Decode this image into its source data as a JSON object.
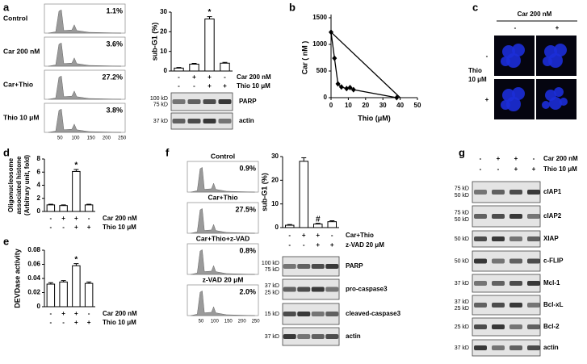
{
  "chart_data": [
    {
      "type": "bar",
      "ylabel": "sub-G1 (%)",
      "values": [
        1.5,
        3.5,
        26.5,
        4
      ],
      "errors": [
        0.3,
        0.4,
        1.2,
        0.4
      ],
      "markers": [
        null,
        null,
        "*",
        null
      ],
      "color": "#ffffff",
      "ylim": [
        0,
        30
      ],
      "yticks": [
        0,
        10,
        20,
        30
      ]
    },
    {
      "type": "line",
      "xlabel": "Thio (μM)",
      "ylabel": "Car ( nM )",
      "xlim": [
        0,
        50
      ],
      "xticks": [
        0,
        10,
        20,
        30,
        40,
        50
      ],
      "ylim": [
        0,
        1500
      ],
      "yticks": [
        0,
        500,
        1000,
        1500
      ],
      "series": [
        {
          "color": "#000000",
          "marker": "diamond",
          "x": [
            0,
            2,
            4,
            6,
            9,
            11,
            13,
            38
          ],
          "values": [
            1230,
            740,
            260,
            200,
            170,
            190,
            150,
            0
          ]
        },
        {
          "color": "#000000",
          "x": [
            0,
            40
          ],
          "values": [
            1230,
            0
          ]
        }
      ]
    },
    {
      "type": "bar",
      "ylabel": [
        "Oligonucleosome",
        "associated histone",
        "(Arbitrary unit, fold)"
      ],
      "values": [
        1,
        0.9,
        6.1,
        1
      ],
      "errors": [
        0.1,
        0.1,
        0.3,
        0.1
      ],
      "markers": [
        null,
        null,
        "*",
        null
      ],
      "color": "#ffffff",
      "ylim": [
        0,
        8
      ],
      "yticks": [
        0,
        2,
        4,
        6,
        8
      ]
    },
    {
      "type": "bar",
      "ylabel": "DEVDase activity",
      "values": [
        0.032,
        0.035,
        0.058,
        0.033
      ],
      "errors": [
        0.002,
        0.002,
        0.003,
        0.002
      ],
      "markers": [
        null,
        null,
        "*",
        null
      ],
      "color": "#ffffff",
      "ylim": [
        0,
        0.08
      ],
      "yticks": [
        0,
        0.02,
        0.04,
        0.06,
        0.08
      ]
    },
    {
      "type": "bar",
      "ylabel": "sub-G1 (%)",
      "values": [
        1,
        28,
        1.5,
        2.5
      ],
      "errors": [
        0.3,
        1.5,
        0.3,
        0.4
      ],
      "markers": [
        null,
        null,
        "#",
        null
      ],
      "color": "#ffffff",
      "ylim": [
        0,
        30
      ],
      "yticks": [
        0,
        10,
        20,
        30
      ]
    }
  ],
  "panel_a": {
    "letter": "a",
    "histograms": [
      {
        "label": "Control",
        "percent": "1.1%"
      },
      {
        "label": "Car 200 nM",
        "percent": "3.6%"
      },
      {
        "label": "Car+Thio",
        "percent": "27.2%"
      },
      {
        "label": "Thio 10 μM",
        "percent": "3.8%"
      }
    ],
    "hist_ticks": [
      "50",
      "100",
      "150",
      "200",
      "250"
    ],
    "conditions": [
      {
        "label": "Car 200 nM",
        "signs": [
          "-",
          "+",
          "+",
          "-"
        ]
      },
      {
        "label": "Thio 10 μM",
        "signs": [
          "-",
          "-",
          "+",
          "+"
        ]
      }
    ],
    "blots": [
      {
        "name": "PARP",
        "markers": [
          "100 kD",
          "75 kD"
        ]
      },
      {
        "name": "actin",
        "markers": [
          "37 kD"
        ]
      }
    ]
  },
  "panel_b": {
    "letter": "b"
  },
  "panel_c": {
    "letter": "c",
    "header": "Car 200 nM",
    "columns": [
      "-",
      "+"
    ],
    "row_title": [
      "Thio",
      "10 μM"
    ],
    "rows": [
      "-",
      "+"
    ]
  },
  "panel_d": {
    "letter": "d",
    "conditions": [
      {
        "label": "Car 200 nM",
        "signs": [
          "-",
          "+",
          "+",
          "-"
        ]
      },
      {
        "label": "Thio 10 μM",
        "signs": [
          "-",
          "-",
          "+",
          "+"
        ]
      }
    ]
  },
  "panel_e": {
    "letter": "e",
    "conditions": [
      {
        "label": "Car 200 nM",
        "signs": [
          "-",
          "+",
          "+",
          "-"
        ]
      },
      {
        "label": "Thio 10 μM",
        "signs": [
          "-",
          "-",
          "+",
          "+"
        ]
      }
    ]
  },
  "panel_f": {
    "letter": "f",
    "histograms": [
      {
        "label": "Control",
        "percent": "0.9%"
      },
      {
        "label": "Car+Thio",
        "percent": "27.5%"
      },
      {
        "label": "Car+Thio+z-VAD",
        "percent": "0.8%"
      },
      {
        "label": "z-VAD 20 μM",
        "percent": "2.0%"
      }
    ],
    "hist_ticks": [
      "50",
      "100",
      "150",
      "200",
      "250"
    ],
    "conditions": [
      {
        "label": "Car+Thio",
        "signs": [
          "-",
          "+",
          "+",
          "-"
        ]
      },
      {
        "label": "z-VAD 20 μM",
        "signs": [
          "-",
          "-",
          "+",
          "+"
        ]
      }
    ],
    "blots": [
      {
        "name": "PARP",
        "markers": [
          "100 kD",
          "75 kD"
        ]
      },
      {
        "name": "pro-caspase3",
        "markers": [
          "37 kD",
          "25 kD"
        ]
      },
      {
        "name": "cleaved-caspase3",
        "markers": [
          "15 kD"
        ]
      },
      {
        "name": "actin",
        "markers": [
          "37 kD"
        ]
      }
    ]
  },
  "panel_g": {
    "letter": "g",
    "conditions": [
      {
        "label": "Car 200 nM",
        "signs": [
          "-",
          "+",
          "+",
          "-"
        ]
      },
      {
        "label": "Thio 10 μM",
        "signs": [
          "-",
          "-",
          "+",
          "+"
        ]
      }
    ],
    "blots": [
      {
        "name": "cIAP1",
        "markers": [
          "75 kD",
          "50 kD"
        ]
      },
      {
        "name": "cIAP2",
        "markers": [
          "75 kD",
          "50 kD"
        ]
      },
      {
        "name": "XIAP",
        "markers": [
          "50 kD"
        ]
      },
      {
        "name": "c-FLIP",
        "markers": [
          "50 kD"
        ]
      },
      {
        "name": "Mcl-1",
        "markers": [
          "37 kD"
        ]
      },
      {
        "name": "Bcl-xL",
        "markers": [
          "37 kD",
          "25 kD"
        ]
      },
      {
        "name": "Bcl-2",
        "markers": [
          "25 kD"
        ]
      },
      {
        "name": "actin",
        "markers": [
          "37 kD"
        ]
      }
    ]
  }
}
